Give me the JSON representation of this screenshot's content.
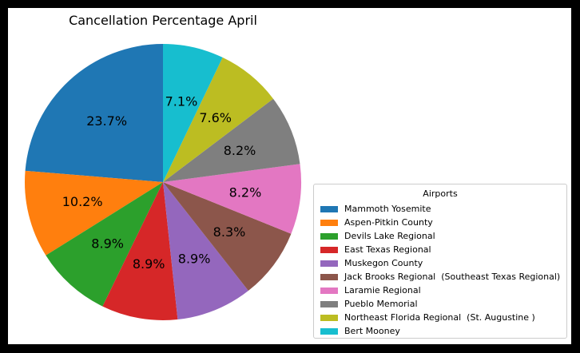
{
  "chart_data": {
    "type": "pie",
    "title": "Cancellation Percentage April",
    "legend_title": "Airports",
    "legend_position": "lower-right",
    "start_angle_deg": 90,
    "direction": "counterclockwise",
    "categories": [
      "Mammoth Yosemite",
      "Aspen-Pitkin County",
      "Devils Lake Regional",
      "East Texas Regional",
      "Muskegon County",
      "Jack Brooks Regional  (Southeast Texas Regional)",
      "Laramie Regional",
      "Pueblo Memorial",
      "Northeast Florida Regional  (St. Augustine )",
      "Bert Mooney"
    ],
    "values": [
      23.7,
      10.2,
      8.9,
      8.9,
      8.9,
      8.3,
      8.2,
      8.2,
      7.6,
      7.1
    ],
    "labels": [
      "23.7%",
      "10.2%",
      "8.9%",
      "8.9%",
      "8.9%",
      "8.3%",
      "8.2%",
      "8.2%",
      "7.6%",
      "7.1%"
    ],
    "colors": [
      "#1f77b4",
      "#ff7f0e",
      "#2ca02c",
      "#d62728",
      "#9467bd",
      "#8c564b",
      "#e377c2",
      "#7f7f7f",
      "#bcbd22",
      "#17becf"
    ]
  }
}
